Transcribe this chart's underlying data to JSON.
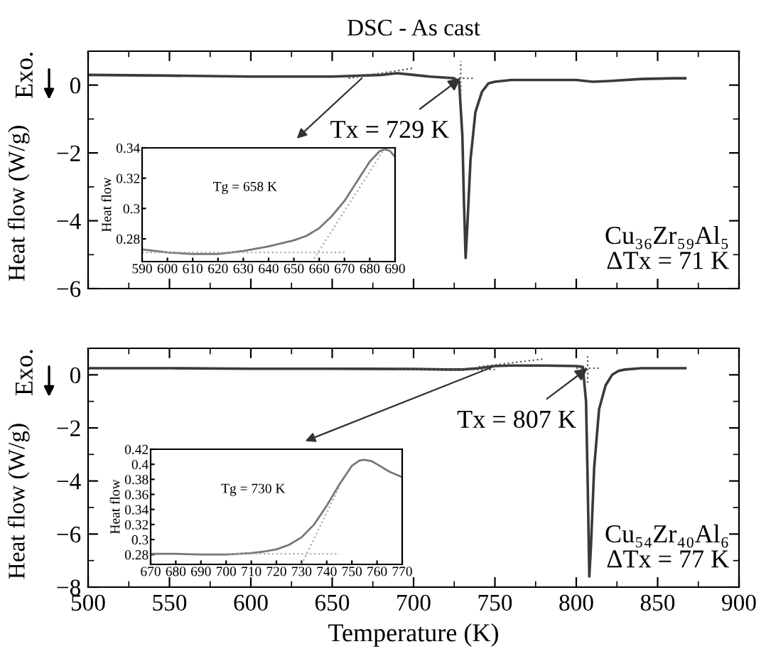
{
  "chart_data": [
    {
      "type": "line",
      "title": "DSC - As cast",
      "ylabel": "Heat flow (W/g)",
      "xlim": [
        500,
        900
      ],
      "xticks": [
        500,
        550,
        600,
        650,
        700,
        750,
        800,
        850,
        900
      ],
      "ylim": [
        -6,
        1
      ],
      "yticks": [
        0,
        {
          "value": -2,
          "label": "−2"
        },
        {
          "value": -4,
          "label": "−4"
        },
        {
          "value": -6,
          "label": "−6"
        }
      ],
      "tick_labels": "y",
      "legend": false,
      "grid": false,
      "series": [
        {
          "color": "#3a3a3a",
          "line_style": "solid",
          "x": [
            500,
            550,
            600,
            650,
            680,
            690,
            700,
            710,
            720,
            725,
            728,
            730,
            731,
            732,
            733,
            735,
            738,
            742,
            746,
            750,
            760,
            780,
            800,
            810,
            820,
            840,
            860,
            867
          ],
          "values": [
            0.3,
            0.28,
            0.25,
            0.25,
            0.3,
            0.35,
            0.3,
            0.25,
            0.22,
            0.2,
            0.1,
            -1.5,
            -3.5,
            -5.1,
            -4.2,
            -2.2,
            -0.8,
            -0.2,
            0.05,
            0.1,
            0.15,
            0.15,
            0.15,
            0.1,
            0.12,
            0.18,
            0.2,
            0.2
          ]
        },
        {
          "color": "#555555",
          "line_style": "dotted",
          "x": [
            660,
            700
          ],
          "values": [
            0.2,
            0.5
          ]
        },
        {
          "color": "#555555",
          "line_style": "dotted",
          "x": [
            729,
            729
          ],
          "values": [
            -0.3,
            0.7
          ]
        },
        {
          "color": "#555555",
          "line_style": "dotted",
          "x": [
            720,
            738
          ],
          "values": [
            0.2,
            0.2
          ]
        }
      ],
      "annotations": [
        {
          "text": "Tx = 729 K",
          "x": 729,
          "y": 0.2
        },
        "Cu₃₆Zr₅₉Al₅\nΔTx = 71 K",
        "Exo."
      ]
    },
    {
      "type": "line",
      "ylabel": "Heat flow",
      "xlim": [
        590,
        690
      ],
      "xticks": [
        590,
        600,
        610,
        620,
        630,
        640,
        650,
        660,
        670,
        680,
        690
      ],
      "ylim": [
        0.265,
        0.34
      ],
      "yticks": [
        0.28,
        0.3,
        0.32,
        0.34
      ],
      "legend": false,
      "grid": false,
      "series": [
        {
          "color": "#777777",
          "line_style": "solid",
          "x": [
            590,
            600,
            610,
            620,
            630,
            640,
            650,
            655,
            660,
            665,
            670,
            675,
            680,
            684,
            686,
            688,
            690
          ],
          "values": [
            0.273,
            0.271,
            0.27,
            0.27,
            0.272,
            0.275,
            0.279,
            0.282,
            0.287,
            0.295,
            0.305,
            0.318,
            0.331,
            0.338,
            0.339,
            0.338,
            0.334
          ]
        },
        {
          "color": "#aaaaaa",
          "line_style": "dotted",
          "x": [
            590,
            670
          ],
          "values": [
            0.271,
            0.271
          ]
        },
        {
          "color": "#aaaaaa",
          "line_style": "dotted",
          "x": [
            658,
            686
          ],
          "values": [
            0.267,
            0.34
          ]
        }
      ],
      "annotations": [
        "Tg = 658 K"
      ]
    },
    {
      "type": "line",
      "xlabel": "Temperature (K)",
      "ylabel": "Heat flow (W/g)",
      "xlim": [
        500,
        900
      ],
      "xticks": [
        500,
        550,
        600,
        650,
        700,
        750,
        800,
        850,
        900
      ],
      "ylim": [
        -8,
        1
      ],
      "yticks": [
        0,
        {
          "value": -2,
          "label": "−2"
        },
        {
          "value": -4,
          "label": "−4"
        },
        {
          "value": -6,
          "label": "−6"
        },
        {
          "value": -8,
          "label": "−8"
        }
      ],
      "legend": false,
      "grid": false,
      "series": [
        {
          "color": "#3a3a3a",
          "line_style": "solid",
          "x": [
            500,
            550,
            600,
            650,
            700,
            720,
            730,
            740,
            750,
            760,
            780,
            800,
            804,
            806,
            807,
            808,
            809,
            811,
            814,
            818,
            822,
            826,
            830,
            840,
            860,
            867
          ],
          "values": [
            0.25,
            0.25,
            0.23,
            0.23,
            0.22,
            0.2,
            0.2,
            0.25,
            0.33,
            0.35,
            0.35,
            0.33,
            0.3,
            -1.0,
            -4.0,
            -7.6,
            -6.5,
            -3.5,
            -1.3,
            -0.4,
            0.0,
            0.15,
            0.2,
            0.25,
            0.25,
            0.25
          ]
        },
        {
          "color": "#555555",
          "line_style": "dotted",
          "x": [
            690,
            750
          ],
          "values": [
            0.2,
            0.2
          ]
        },
        {
          "color": "#555555",
          "line_style": "dotted",
          "x": [
            740,
            780
          ],
          "values": [
            0.3,
            0.6
          ]
        },
        {
          "color": "#555555",
          "line_style": "dotted",
          "x": [
            807,
            807
          ],
          "values": [
            -0.3,
            0.7
          ]
        },
        {
          "color": "#555555",
          "line_style": "dotted",
          "x": [
            800,
            814
          ],
          "values": [
            0.25,
            0.25
          ]
        }
      ],
      "annotations": [
        {
          "text": "Tx = 807 K",
          "x": 807,
          "y": 0.25
        },
        "Cu₅₄Zr₄₀Al₆\nΔTx = 77 K",
        "Exo."
      ]
    },
    {
      "type": "line",
      "ylabel": "Heat flow",
      "xlim": [
        670,
        770
      ],
      "xticks": [
        670,
        680,
        690,
        700,
        710,
        720,
        730,
        740,
        750,
        760,
        770
      ],
      "ylim": [
        0.267,
        0.42
      ],
      "yticks": [
        0.28,
        0.3,
        0.32,
        0.34,
        0.36,
        0.38,
        0.4,
        0.42
      ],
      "legend": false,
      "grid": false,
      "series": [
        {
          "color": "#777777",
          "line_style": "solid",
          "x": [
            670,
            680,
            690,
            700,
            710,
            715,
            720,
            725,
            730,
            735,
            740,
            745,
            750,
            753,
            755,
            758,
            760,
            765,
            770
          ],
          "values": [
            0.281,
            0.281,
            0.28,
            0.28,
            0.282,
            0.284,
            0.287,
            0.293,
            0.303,
            0.32,
            0.345,
            0.373,
            0.398,
            0.405,
            0.406,
            0.404,
            0.4,
            0.39,
            0.383
          ]
        },
        {
          "color": "#aaaaaa",
          "line_style": "dotted",
          "x": [
            700,
            745
          ],
          "values": [
            0.281,
            0.281
          ]
        },
        {
          "color": "#aaaaaa",
          "line_style": "dotted",
          "x": [
            730,
            745
          ],
          "values": [
            0.267,
            0.37
          ]
        }
      ],
      "annotations": [
        "Tg = 730 K"
      ]
    }
  ]
}
